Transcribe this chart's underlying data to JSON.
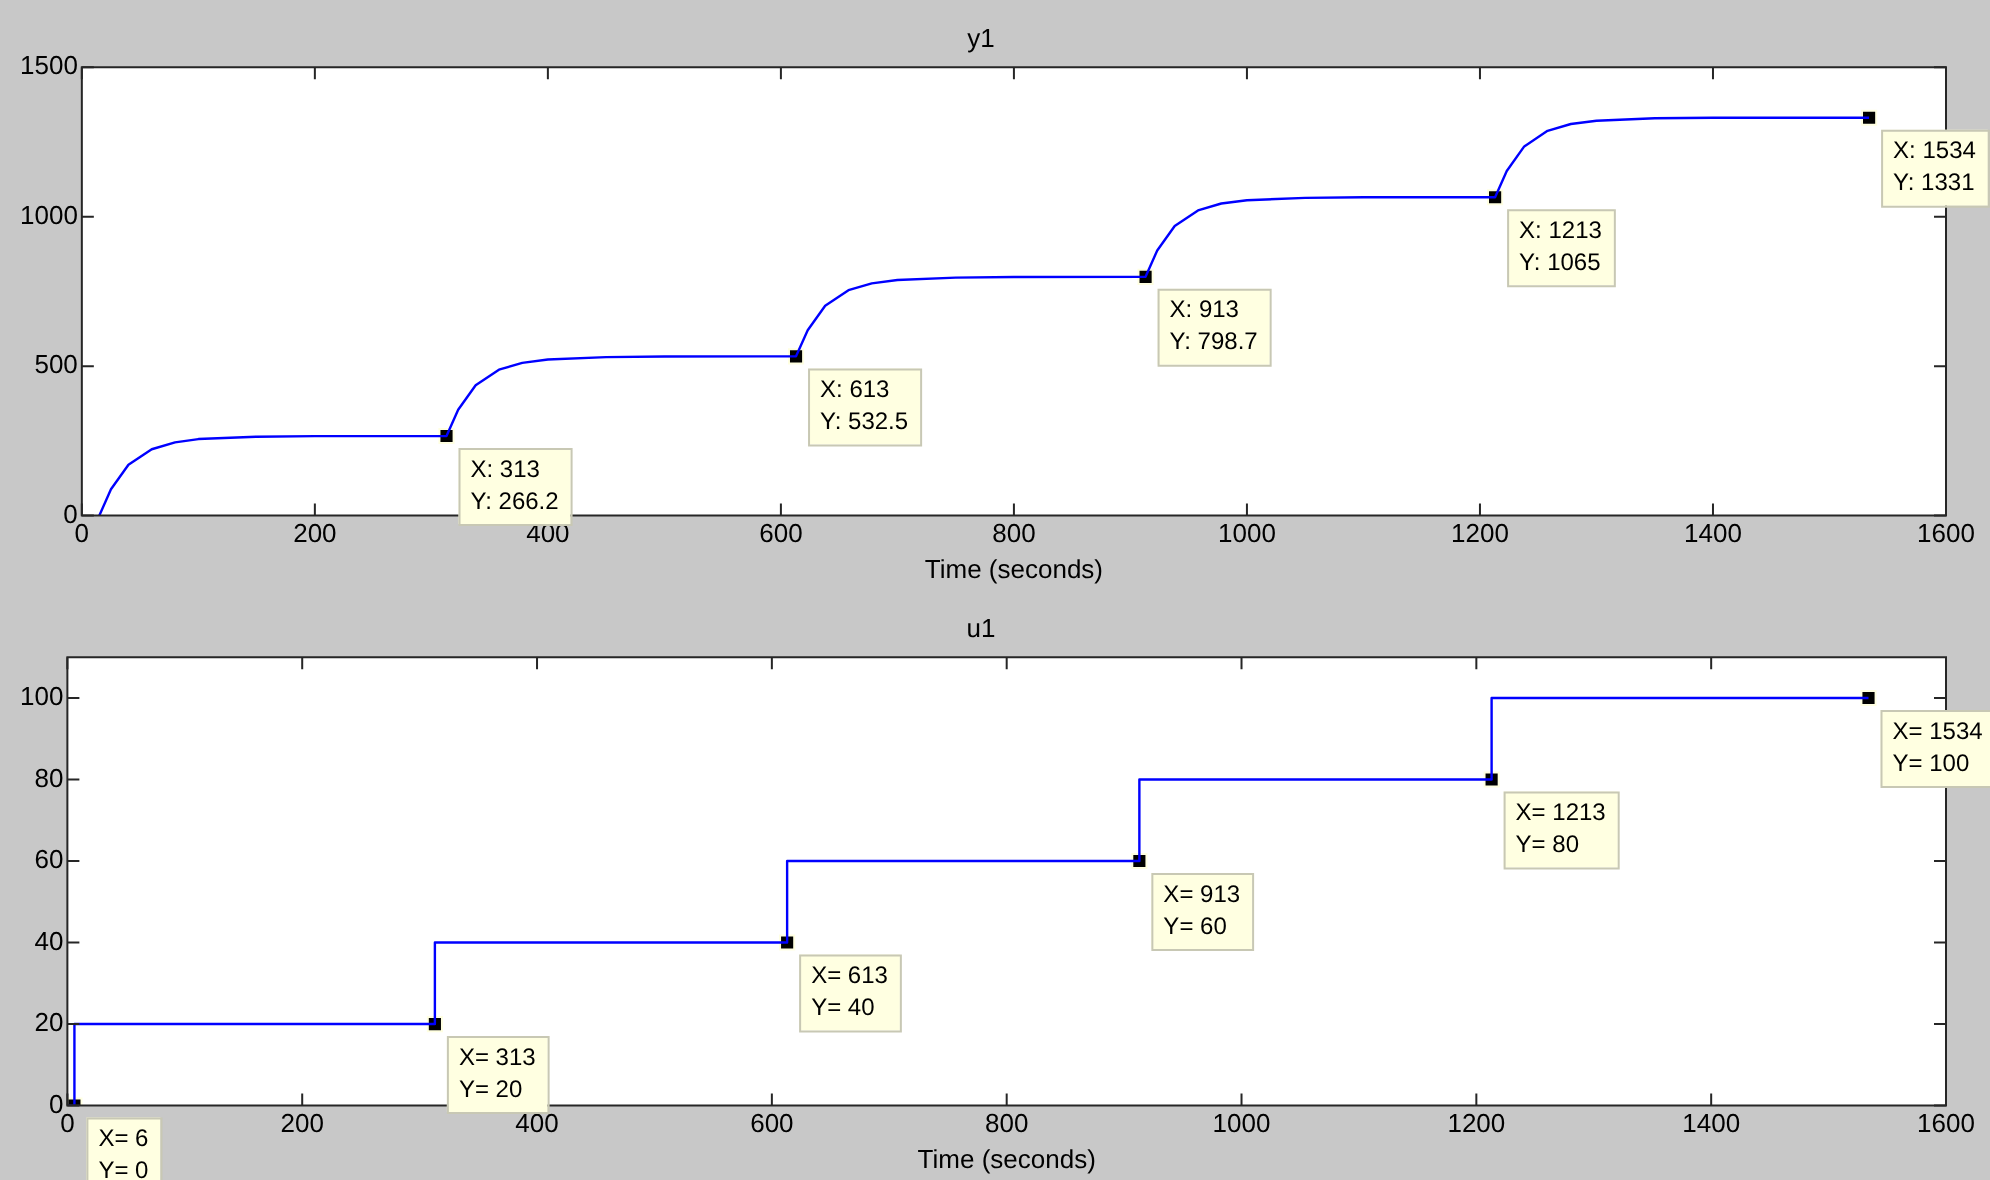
{
  "chart_data": [
    {
      "type": "line",
      "title": "y1",
      "xlabel": "Time (seconds)",
      "x": [
        15,
        25,
        40,
        60,
        80,
        100,
        150,
        200,
        313,
        323,
        338,
        358,
        378,
        400,
        450,
        500,
        613,
        623,
        638,
        658,
        678,
        700,
        750,
        800,
        913,
        923,
        938,
        958,
        978,
        1000,
        1050,
        1100,
        1213,
        1223,
        1238,
        1258,
        1278,
        1300,
        1350,
        1400,
        1534
      ],
      "series": [
        {
          "color": "#0000ff",
          "values": [
            0,
            88,
            170,
            222,
            245,
            256,
            264,
            266,
            266,
            354,
            436,
            488,
            511,
            522,
            530,
            532,
            533,
            620,
            702,
            754,
            777,
            788,
            796,
            798,
            799,
            887,
            969,
            1021,
            1044,
            1055,
            1063,
            1065,
            1065,
            1153,
            1235,
            1287,
            1310,
            1321,
            1329,
            1331,
            1331
          ]
        },
        {
          "type": "scatter",
          "marker": "square",
          "color": "#000000",
          "x": [
            313,
            613,
            913,
            1213,
            1534
          ],
          "values": [
            266.2,
            532.5,
            798.7,
            1065,
            1331
          ]
        }
      ],
      "xlim": [
        0,
        1600
      ],
      "xticks": [
        0,
        200,
        400,
        600,
        800,
        1000,
        1200,
        1400,
        1600
      ],
      "ylim": [
        0,
        1500
      ],
      "yticks": [
        0,
        500,
        1000,
        1500
      ],
      "grid": false,
      "legend": false,
      "marker": "none",
      "line_style": "solid",
      "annotations": [
        {
          "text": "X: 313\nY: 266.2",
          "x": 313,
          "y": 266.2
        },
        {
          "text": "X: 613\nY: 532.5",
          "x": 613,
          "y": 532.5
        },
        {
          "text": "X: 913\nY: 798.7",
          "x": 913,
          "y": 798.7
        },
        {
          "text": "X: 1213\nY: 1065",
          "x": 1213,
          "y": 1065
        },
        {
          "text": "X: 1534\nY: 1331",
          "x": 1534,
          "y": 1331
        }
      ]
    },
    {
      "type": "step",
      "title": "u1",
      "xlabel": "Time (seconds)",
      "x": [
        0,
        6,
        313,
        613,
        913,
        1213,
        1534
      ],
      "series": [
        {
          "color": "#0000ff",
          "values": [
            0,
            0,
            20,
            40,
            60,
            80,
            100
          ]
        },
        {
          "type": "scatter",
          "marker": "square",
          "color": "#000000",
          "x": [
            6,
            313,
            613,
            913,
            1213,
            1534
          ],
          "values": [
            0,
            20,
            40,
            60,
            80,
            100
          ]
        }
      ],
      "xlim": [
        0,
        1600
      ],
      "xticks": [
        0,
        200,
        400,
        600,
        800,
        1000,
        1200,
        1400,
        1600
      ],
      "ylim": [
        0,
        110
      ],
      "yticks": [
        0,
        20,
        40,
        60,
        80,
        100
      ],
      "grid": false,
      "legend": false,
      "marker": "none",
      "line_style": "solid",
      "annotations": [
        {
          "text": "X= 6\nY= 0",
          "x": 6,
          "y": 0
        },
        {
          "text": "X= 313\nY= 20",
          "x": 313,
          "y": 20
        },
        {
          "text": "X= 613\nY= 40",
          "x": 613,
          "y": 40
        },
        {
          "text": "X= 913\nY= 60",
          "x": 913,
          "y": 60
        },
        {
          "text": "X= 1213\nY= 80",
          "x": 1213,
          "y": 80
        },
        {
          "text": "X= 1534\nY= 100",
          "x": 1534,
          "y": 100
        }
      ]
    }
  ]
}
